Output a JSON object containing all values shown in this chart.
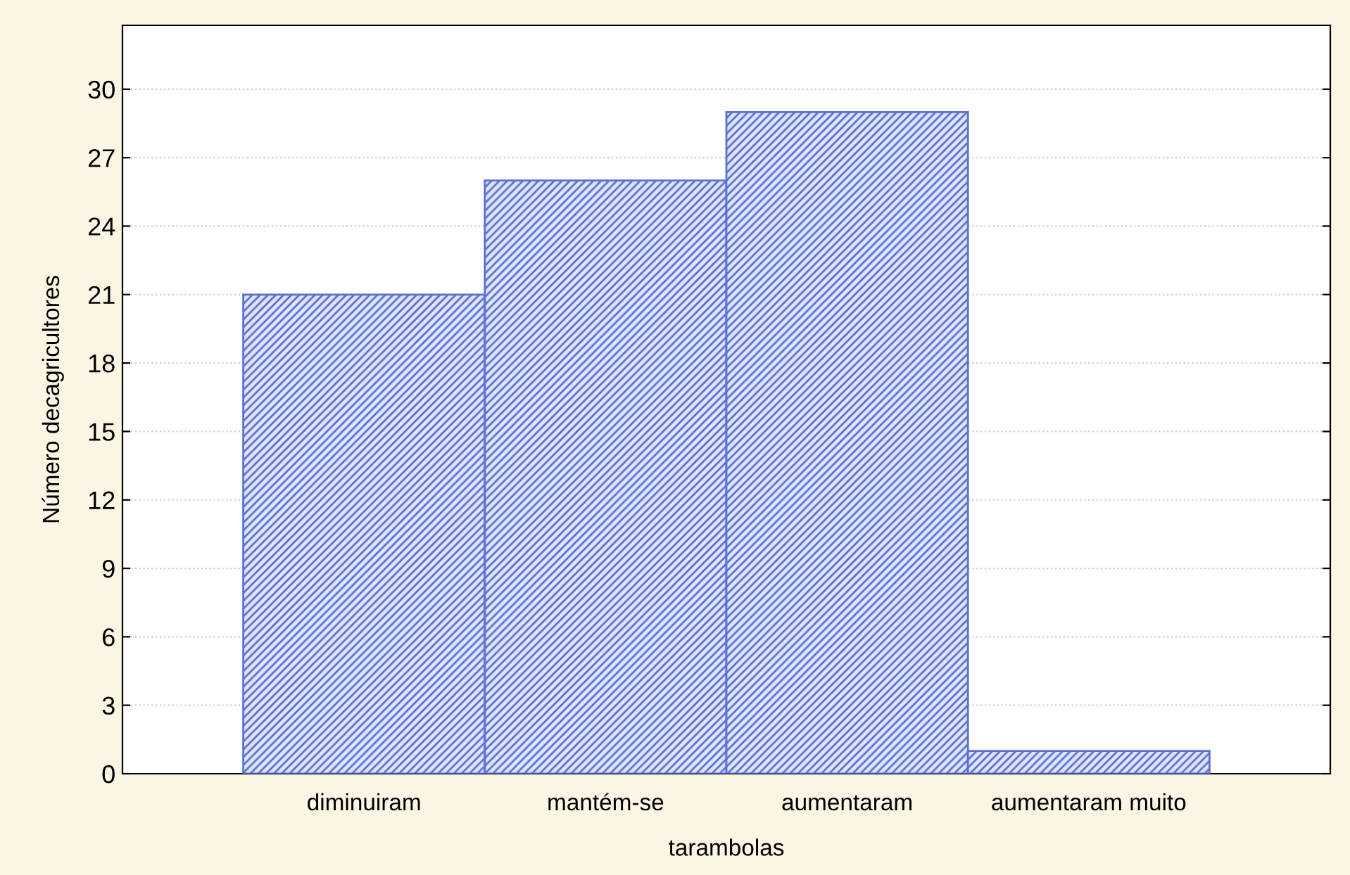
{
  "chart_data": {
    "type": "bar",
    "xlabel": "tarambolas",
    "ylabel": "Número decagricultores",
    "categories": [
      "diminuiram",
      "mantém-se",
      "aumentaram",
      "aumentaram muito"
    ],
    "values": [
      21,
      26,
      29,
      1
    ],
    "color": "#5b6fd4",
    "ylim": [
      0,
      32.8
    ],
    "yticks": [
      0,
      3,
      6,
      9,
      12,
      15,
      18,
      21,
      24,
      27,
      30
    ],
    "grid": "y"
  }
}
